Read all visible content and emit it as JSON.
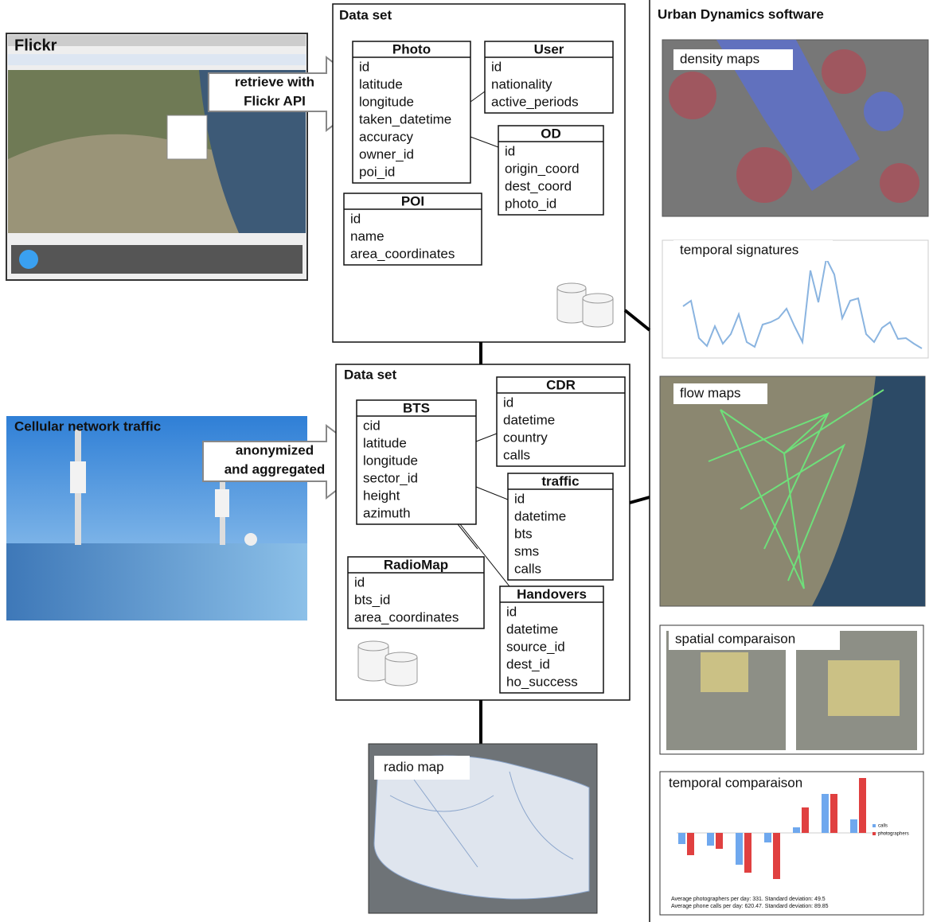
{
  "flickr": {
    "title": "Flickr",
    "arrow_label": [
      "retrieve with",
      "Flickr API"
    ]
  },
  "cellular": {
    "title": "Cellular network traffic",
    "arrow_label": [
      "anonymized",
      "and aggregated"
    ]
  },
  "dataset_1": {
    "title": "Data set",
    "tables": [
      {
        "name": "Photo",
        "fields": [
          "id",
          "latitude",
          "longitude",
          "taken_datetime",
          "accuracy",
          "owner_id",
          "poi_id"
        ]
      },
      {
        "name": "User",
        "fields": [
          "id",
          "nationality",
          "active_periods"
        ]
      },
      {
        "name": "OD",
        "fields": [
          "id",
          "origin_coord",
          "dest_coord",
          "photo_id"
        ]
      },
      {
        "name": "POI",
        "fields": [
          "id",
          "name",
          "area_coordinates"
        ]
      }
    ]
  },
  "dataset_2": {
    "title": "Data set",
    "tables": [
      {
        "name": "BTS",
        "fields": [
          "cid",
          "latitude",
          "longitude",
          "sector_id",
          "height",
          "azimuth"
        ]
      },
      {
        "name": "CDR",
        "fields": [
          "id",
          "datetime",
          "country",
          "calls"
        ]
      },
      {
        "name": "traffic",
        "fields": [
          "id",
          "datetime",
          "bts",
          "sms",
          "calls"
        ]
      },
      {
        "name": "RadioMap",
        "fields": [
          "id",
          "bts_id",
          "area_coordinates"
        ]
      },
      {
        "name": "Handovers",
        "fields": [
          "id",
          "datetime",
          "source_id",
          "dest_id",
          "ho_success"
        ]
      }
    ]
  },
  "radio_map": {
    "label": "radio map"
  },
  "software": {
    "title": "Urban Dynamics software",
    "panels": [
      "density maps",
      "temporal signatures",
      "flow maps",
      "spatial comparaison",
      "temporal comparaison"
    ],
    "legend": [
      "calls",
      "photographers"
    ],
    "notes": [
      "Average photographers per day: 331. Standard deviation: 49.5",
      "Average phone calls per day: 620.47. Standard deviation: 89.85"
    ]
  }
}
